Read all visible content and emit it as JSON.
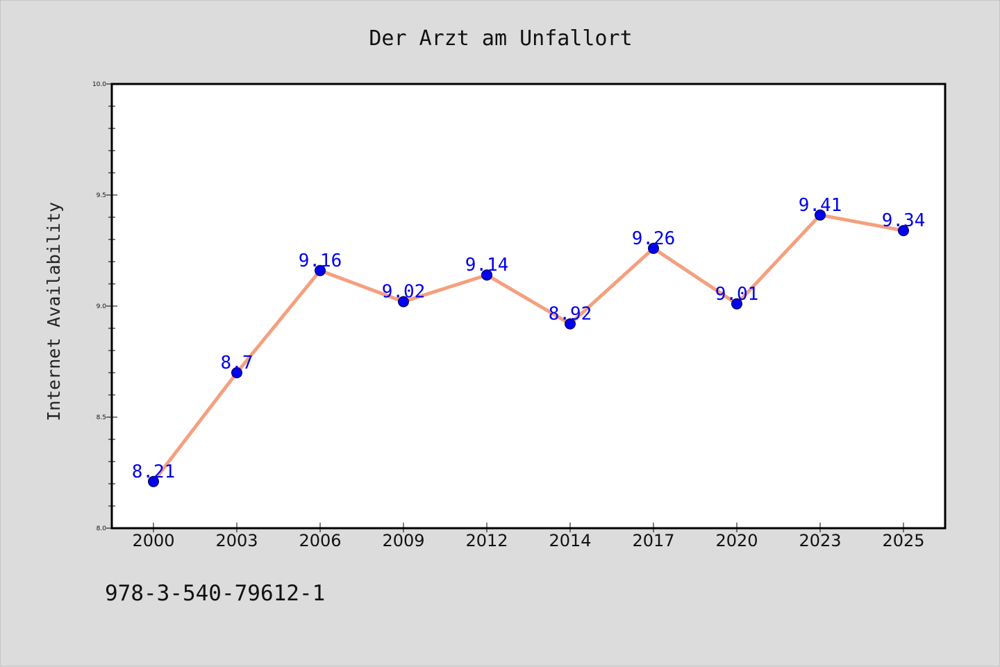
{
  "chart_data": {
    "type": "line",
    "title": "Der Arzt am Unfallort",
    "xlabel": "",
    "ylabel": "Internet Availability",
    "categories": [
      "2000",
      "2003",
      "2006",
      "2009",
      "2012",
      "2014",
      "2017",
      "2020",
      "2023",
      "2025"
    ],
    "series": [
      {
        "values": [
          8.21,
          8.7,
          9.16,
          9.02,
          9.14,
          8.92,
          9.26,
          9.01,
          9.41,
          9.34
        ],
        "data_labels": [
          "8.21",
          "8.7",
          "9.16",
          "9.02",
          "9.14",
          "8.92",
          "9.26",
          "9.01",
          "9.41",
          "9.34"
        ]
      }
    ],
    "ylim": [
      8.0,
      10.0
    ],
    "yticks": [
      "8.0",
      "8.5",
      "9.0",
      "9.5",
      "10.0"
    ],
    "grid": false,
    "legend": "none",
    "colors": {
      "line": "#f4a07e",
      "marker": "#0000ee",
      "data_label": "#0000ee",
      "background": "#dcdcdc",
      "plot_area": "#ffffff"
    }
  },
  "footer": {
    "isbn": "978-3-540-79612-1"
  }
}
